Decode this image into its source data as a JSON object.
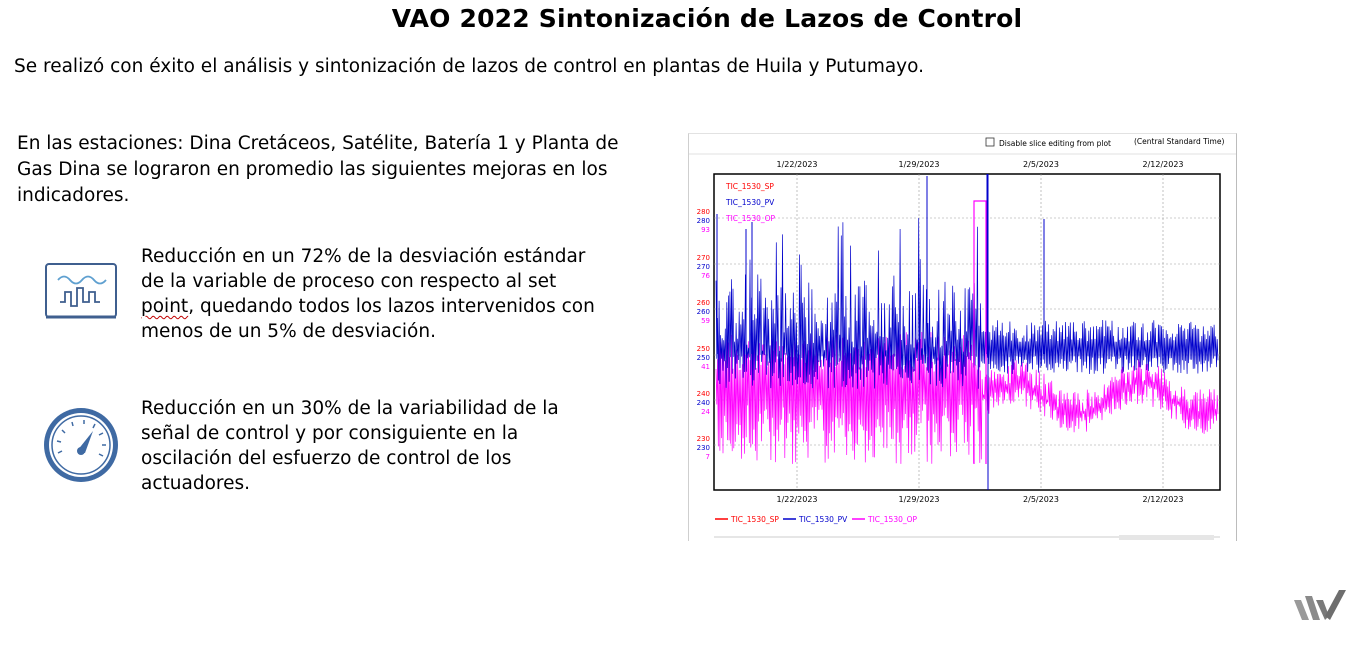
{
  "slide": {
    "title": "VAO 2022  Sintonización de Lazos de Control",
    "intro": "Se realizó con éxito el análisis y sintonización de lazos de control en plantas de Huila y Putumayo.",
    "stations": "En las estaciones: Dina Cretáceos, Satélite, Batería 1 y Planta de Gas Dina se lograron en promedio las siguientes mejoras en los indicadores.",
    "bullets": [
      {
        "icon": "signal-monitor-icon",
        "text_pre": "Reducción en un 72% de la desviación estándar de la variable de proceso con respecto al set ",
        "text_flag": "point",
        "text_post": ", quedando todos los lazos intervenidos con menos de un 5% de desviación."
      },
      {
        "icon": "gauge-icon",
        "text_pre": "Reducción en un 30% de la variabilidad de la señal de control y por consiguiente en la oscilación del esfuerzo de control de los actuadores.",
        "text_flag": "",
        "text_post": ""
      }
    ]
  },
  "chart_panel": {
    "checkbox_label": "Disable slice editing from plot",
    "timezone": "(Central Standard Time)"
  },
  "chart_data": {
    "type": "line",
    "x_ticks": [
      "1/22/2023",
      "1/29/2023",
      "2/5/2023",
      "2/12/2023"
    ],
    "series": [
      {
        "name": "TIC_1530_SP",
        "color": "#ff0000",
        "axis_ticks": [
          "280",
          "270",
          "260",
          "250",
          "240",
          "230"
        ]
      },
      {
        "name": "TIC_1530_PV",
        "color": "#0000cc",
        "axis_ticks": [
          "280",
          "270",
          "260",
          "250",
          "240",
          "230"
        ]
      },
      {
        "name": "TIC_1530_OP",
        "color": "#ff00ff",
        "axis_ticks": [
          "93",
          "76",
          "59",
          "41",
          "24",
          "7"
        ]
      }
    ],
    "grid": true,
    "legend": "top-left and bottom"
  },
  "colors": {
    "pv": "#0000cc",
    "op": "#ff00ff",
    "sp": "#ff0000",
    "icon": "#3f5f8f"
  }
}
